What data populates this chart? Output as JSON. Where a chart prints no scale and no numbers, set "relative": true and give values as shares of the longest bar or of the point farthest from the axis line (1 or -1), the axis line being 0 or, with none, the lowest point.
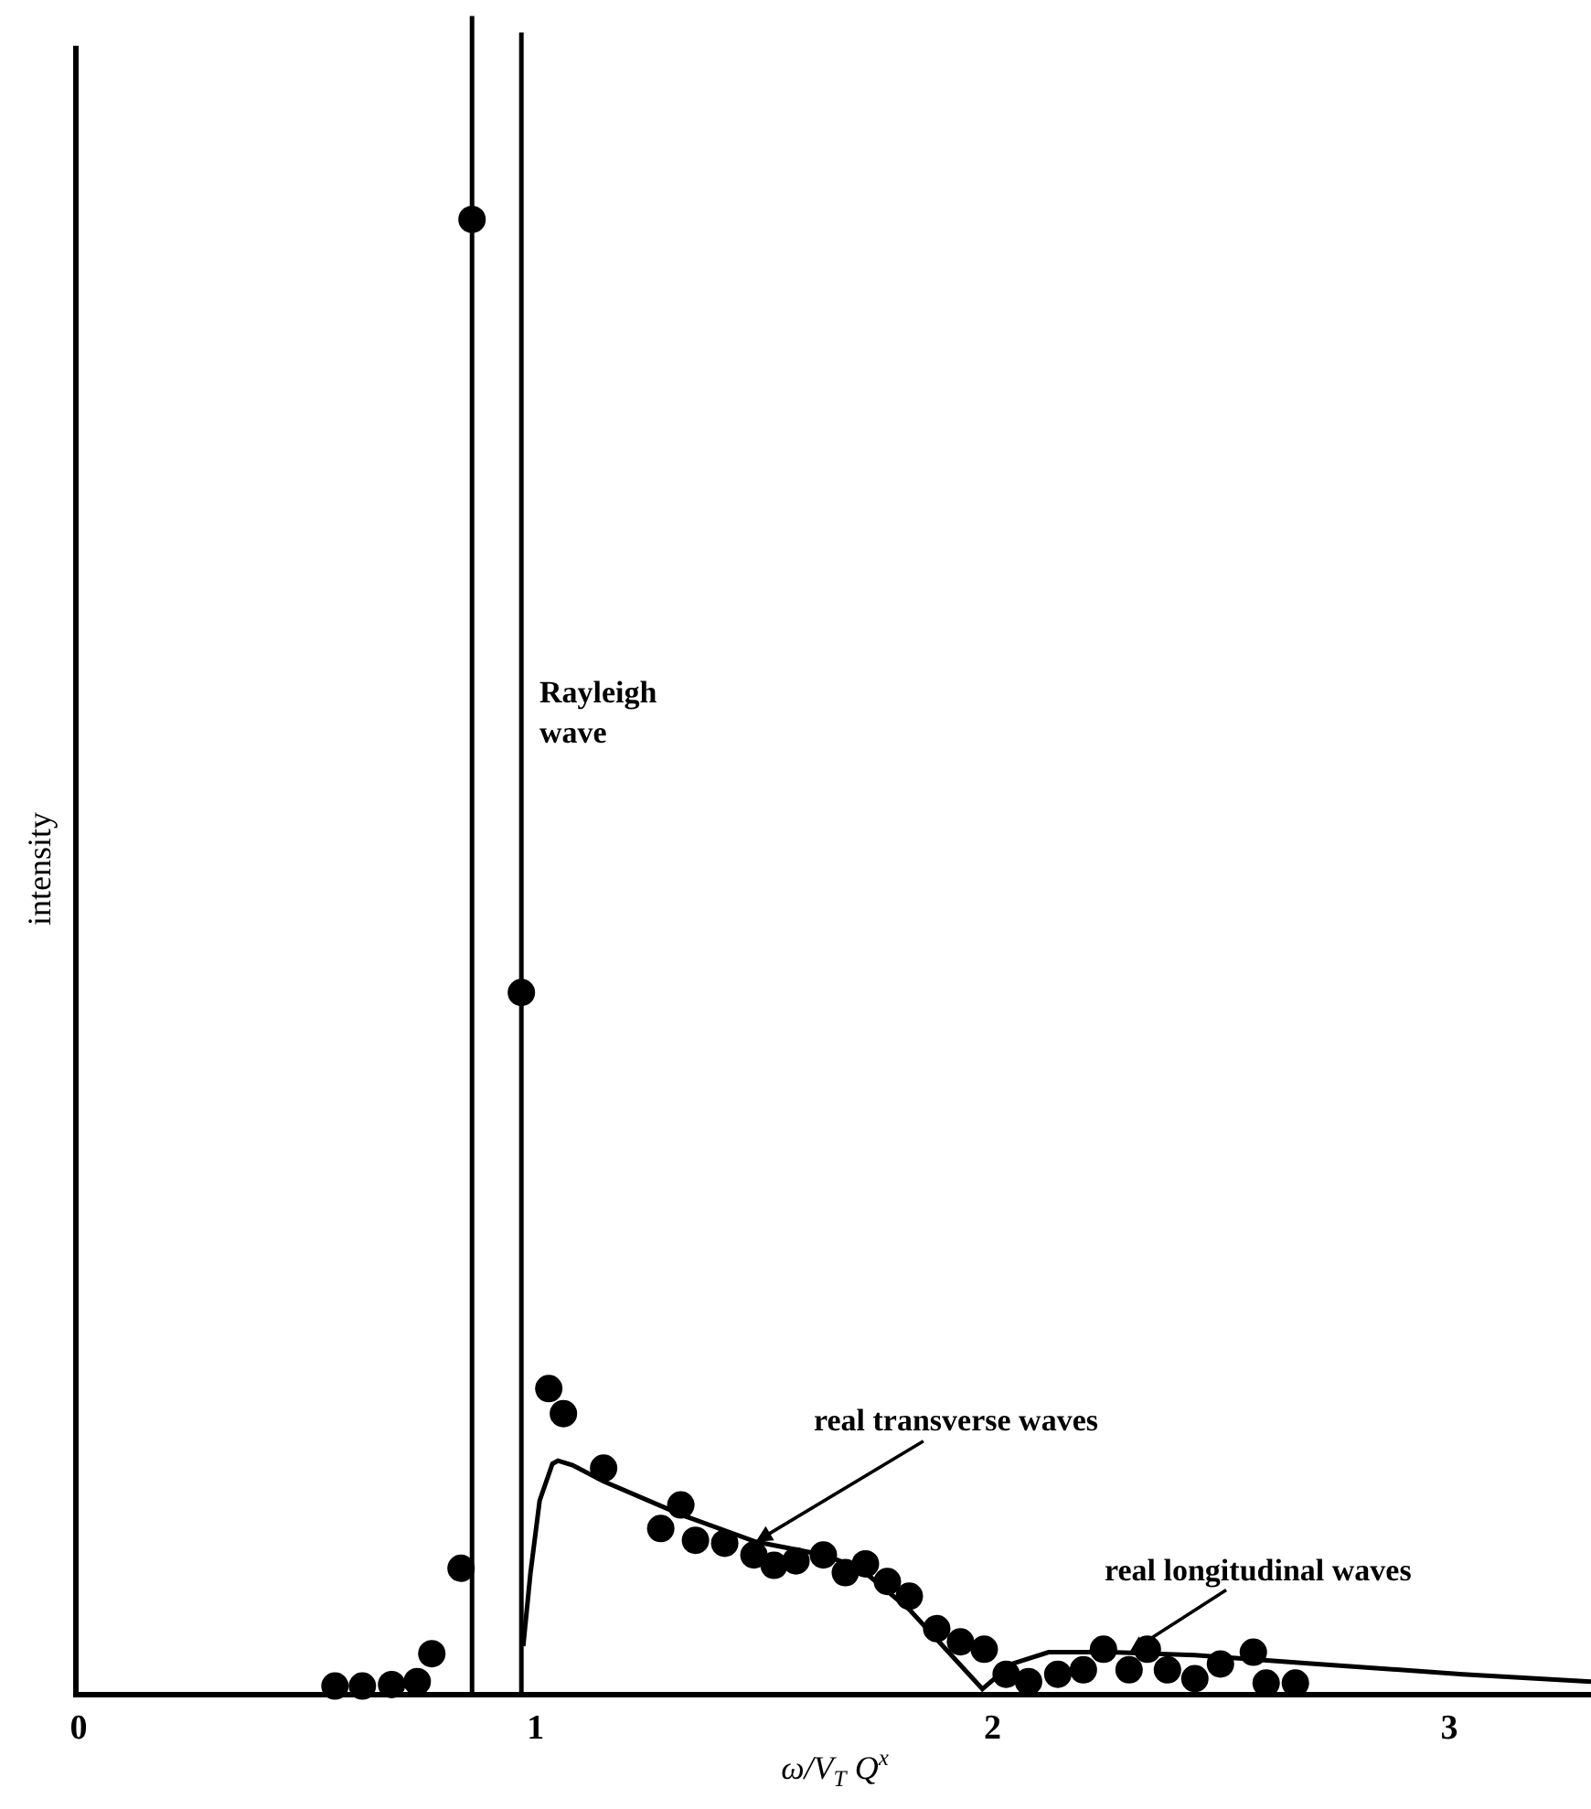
{
  "chart_data": {
    "type": "scatter",
    "relative": true,
    "xlabel": "ω/V$_{T}$ Q$^{x}$",
    "ylabel": "intensity",
    "xlim": [
      0,
      3.31
    ],
    "xticks": [
      0,
      1,
      2,
      3
    ],
    "grid": false,
    "series": [
      {
        "type": "line",
        "color": "#000000",
        "marker": "none",
        "line_style": "solid",
        "x": [
          0.973,
          0.989,
          1.009,
          1.037,
          1.049,
          1.081,
          1.149,
          1.322,
          1.482,
          1.63,
          1.71,
          1.818,
          1.978,
          2.042,
          2.123,
          2.259,
          2.443,
          2.711,
          3.03,
          3.31
        ],
        "values": [
          0.031,
          0.081,
          0.13,
          0.155,
          0.157,
          0.154,
          0.143,
          0.12,
          0.102,
          0.093,
          0.084,
          0.056,
          0.002,
          0.019,
          0.027,
          0.027,
          0.025,
          0.019,
          0.012,
          0.007
        ]
      },
      {
        "color": "#000000",
        "marker": "circle",
        "x": [
          0.561,
          0.621,
          0.685,
          0.741,
          0.773,
          0.837,
          0.861,
          0.969,
          1.029,
          1.061,
          1.149,
          1.274,
          1.318,
          1.35,
          1.414,
          1.478,
          1.522,
          1.57,
          1.63,
          1.678,
          1.722,
          1.77,
          1.818,
          1.878,
          1.93,
          1.982,
          2.03,
          2.079,
          2.143,
          2.199,
          2.243,
          2.299,
          2.339,
          2.383,
          2.443,
          2.499,
          2.571,
          2.599,
          2.663
        ],
        "values": [
          0.004,
          0.004,
          0.005,
          0.007,
          0.026,
          0.084,
          1.0,
          0.475,
          0.206,
          0.189,
          0.152,
          0.111,
          0.127,
          0.103,
          0.101,
          0.093,
          0.086,
          0.089,
          0.093,
          0.081,
          0.087,
          0.075,
          0.065,
          0.043,
          0.034,
          0.029,
          0.012,
          0.007,
          0.012,
          0.015,
          0.029,
          0.015,
          0.029,
          0.015,
          0.009,
          0.019,
          0.027,
          0.006,
          0.006
        ]
      }
    ],
    "ref_lines": [
      {
        "axis": "x",
        "value": 0.861,
        "color": "#000000"
      },
      {
        "axis": "x",
        "value": 0.969,
        "label": "Rayleigh wave",
        "color": "#000000"
      }
    ],
    "annotations": [
      {
        "text": "real transverse waves",
        "x": 1.482,
        "y": 0.102
      },
      {
        "text": "real longitudinal waves",
        "x": 2.3,
        "y": 0.027
      }
    ]
  }
}
